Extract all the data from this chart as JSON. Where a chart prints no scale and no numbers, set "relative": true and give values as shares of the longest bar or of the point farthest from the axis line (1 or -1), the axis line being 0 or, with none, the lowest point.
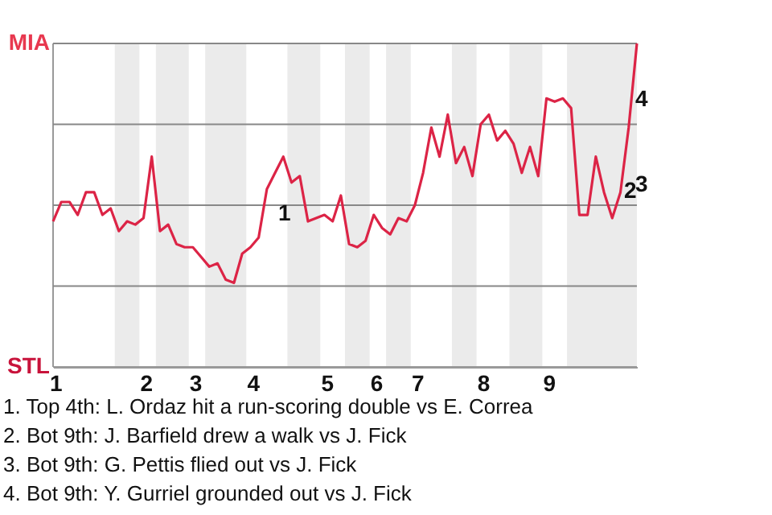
{
  "chart_data": {
    "type": "line",
    "relative": true,
    "categories": [
      "1",
      null,
      null,
      null,
      null,
      null,
      null,
      null,
      null,
      null,
      null,
      "2",
      null,
      null,
      null,
      null,
      null,
      "3",
      null,
      null,
      null,
      null,
      null,
      null,
      "4",
      null,
      null,
      null,
      null,
      null,
      null,
      null,
      null,
      "5",
      null,
      null,
      null,
      null,
      null,
      "6",
      null,
      null,
      null,
      null,
      "7",
      null,
      null,
      null,
      null,
      null,
      null,
      null,
      "8",
      null,
      null,
      null,
      null,
      null,
      null,
      null,
      "9",
      null,
      null,
      null,
      null,
      null,
      null,
      null,
      null,
      null,
      null,
      null
    ],
    "series": [
      {
        "color": "#dc2446",
        "values": [
          0.45,
          0.51,
          0.51,
          0.47,
          0.54,
          0.54,
          0.47,
          0.49,
          0.42,
          0.45,
          0.44,
          0.46,
          0.65,
          0.42,
          0.44,
          0.38,
          0.37,
          0.37,
          0.34,
          0.31,
          0.32,
          0.27,
          0.26,
          0.35,
          0.37,
          0.4,
          0.55,
          0.6,
          0.65,
          0.57,
          0.59,
          0.45,
          0.46,
          0.47,
          0.45,
          0.53,
          0.38,
          0.37,
          0.39,
          0.47,
          0.43,
          0.41,
          0.46,
          0.45,
          0.5,
          0.6,
          0.74,
          0.65,
          0.78,
          0.63,
          0.68,
          0.59,
          0.75,
          0.78,
          0.7,
          0.73,
          0.69,
          0.6,
          0.68,
          0.59,
          0.83,
          0.82,
          0.83,
          0.8,
          0.47,
          0.47,
          0.65,
          0.54,
          0.46,
          0.54,
          0.74,
          1.0
        ]
      }
    ],
    "grid": "y",
    "annotations": [
      "MIA",
      "STL",
      "1",
      "2",
      "3",
      "4",
      "1. Top 4th: L. Ordaz hit a run-scoring double vs E. Correa",
      "2. Bot 9th: J. Barfield drew a walk vs J. Fick",
      "3. Bot 9th: G. Pettis flied out vs J. Fick",
      "4. Bot 9th: Y. Gurriel grounded out vs J. Fick"
    ]
  }
}
